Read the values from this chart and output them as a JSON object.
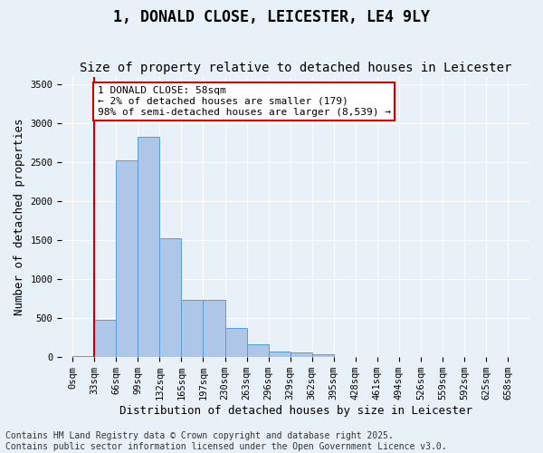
{
  "title": "1, DONALD CLOSE, LEICESTER, LE4 9LY",
  "subtitle": "Size of property relative to detached houses in Leicester",
  "xlabel": "Distribution of detached houses by size in Leicester",
  "ylabel": "Number of detached properties",
  "bar_values": [
    10,
    480,
    2520,
    2830,
    1530,
    730,
    730,
    380,
    160,
    75,
    55,
    40,
    0,
    0,
    0,
    0,
    0,
    0,
    0,
    0,
    0
  ],
  "bar_labels": [
    "0sqm",
    "33sqm",
    "66sqm",
    "99sqm",
    "132sqm",
    "165sqm",
    "197sqm",
    "230sqm",
    "263sqm",
    "296sqm",
    "329sqm",
    "362sqm",
    "395sqm",
    "428sqm",
    "461sqm",
    "494sqm",
    "526sqm",
    "559sqm",
    "592sqm",
    "625sqm",
    "658sqm"
  ],
  "bar_color": "#aec6e8",
  "bar_edge_color": "#5b9bd5",
  "vline_x": 1,
  "vline_color": "#cc0000",
  "annotation_text": "1 DONALD CLOSE: 58sqm\n← 2% of detached houses are smaller (179)\n98% of semi-detached houses are larger (8,539) →",
  "annotation_box_color": "#ffffff",
  "annotation_box_edge": "#cc0000",
  "ylim": [
    0,
    3600
  ],
  "yticks": [
    0,
    500,
    1000,
    1500,
    2000,
    2500,
    3000,
    3500
  ],
  "bg_color": "#e8f0f8",
  "plot_bg_color": "#e8f0f8",
  "grid_color": "#ffffff",
  "footer_line1": "Contains HM Land Registry data © Crown copyright and database right 2025.",
  "footer_line2": "Contains public sector information licensed under the Open Government Licence v3.0.",
  "title_fontsize": 12,
  "subtitle_fontsize": 10,
  "axis_label_fontsize": 9,
  "tick_fontsize": 7.5,
  "annotation_fontsize": 8,
  "footer_fontsize": 7
}
